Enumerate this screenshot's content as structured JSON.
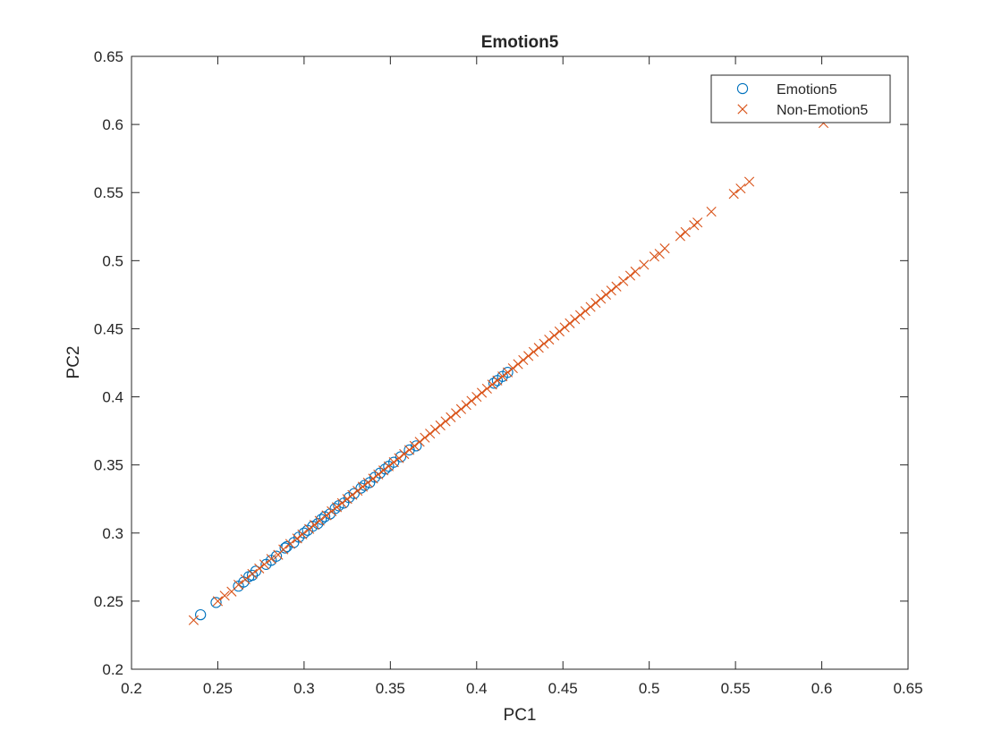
{
  "chart_data": {
    "type": "scatter",
    "title": "Emotion5",
    "xlabel": "PC1",
    "ylabel": "PC2",
    "xlim": [
      0.2,
      0.65
    ],
    "ylim": [
      0.2,
      0.65
    ],
    "xticks": [
      "0.2",
      "0.25",
      "0.3",
      "0.35",
      "0.4",
      "0.45",
      "0.5",
      "0.55",
      "0.6",
      "0.65"
    ],
    "yticks": [
      "0.2",
      "0.25",
      "0.3",
      "0.35",
      "0.4",
      "0.45",
      "0.5",
      "0.55",
      "0.6",
      "0.65"
    ],
    "grid": false,
    "legend_position": "top-right",
    "series": [
      {
        "name": "Emotion5",
        "marker": "circle",
        "color": "#0072BD",
        "points": [
          [
            0.24,
            0.24
          ],
          [
            0.249,
            0.249
          ],
          [
            0.262,
            0.261
          ],
          [
            0.265,
            0.264
          ],
          [
            0.268,
            0.268
          ],
          [
            0.27,
            0.269
          ],
          [
            0.272,
            0.272
          ],
          [
            0.278,
            0.277
          ],
          [
            0.281,
            0.28
          ],
          [
            0.284,
            0.283
          ],
          [
            0.289,
            0.289
          ],
          [
            0.29,
            0.29
          ],
          [
            0.294,
            0.293
          ],
          [
            0.297,
            0.297
          ],
          [
            0.3,
            0.3
          ],
          [
            0.302,
            0.302
          ],
          [
            0.305,
            0.305
          ],
          [
            0.308,
            0.307
          ],
          [
            0.31,
            0.31
          ],
          [
            0.312,
            0.312
          ],
          [
            0.315,
            0.314
          ],
          [
            0.318,
            0.318
          ],
          [
            0.32,
            0.32
          ],
          [
            0.323,
            0.322
          ],
          [
            0.326,
            0.326
          ],
          [
            0.329,
            0.329
          ],
          [
            0.333,
            0.333
          ],
          [
            0.335,
            0.335
          ],
          [
            0.338,
            0.337
          ],
          [
            0.341,
            0.341
          ],
          [
            0.344,
            0.344
          ],
          [
            0.347,
            0.347
          ],
          [
            0.349,
            0.349
          ],
          [
            0.352,
            0.352
          ],
          [
            0.356,
            0.356
          ],
          [
            0.361,
            0.361
          ],
          [
            0.365,
            0.364
          ],
          [
            0.41,
            0.41
          ],
          [
            0.412,
            0.412
          ],
          [
            0.415,
            0.415
          ],
          [
            0.418,
            0.418
          ]
        ]
      },
      {
        "name": "Non-Emotion5",
        "marker": "x",
        "color": "#D95319",
        "points": [
          [
            0.236,
            0.236
          ],
          [
            0.25,
            0.25
          ],
          [
            0.254,
            0.254
          ],
          [
            0.258,
            0.257
          ],
          [
            0.262,
            0.262
          ],
          [
            0.266,
            0.266
          ],
          [
            0.27,
            0.27
          ],
          [
            0.274,
            0.274
          ],
          [
            0.277,
            0.277
          ],
          [
            0.281,
            0.281
          ],
          [
            0.285,
            0.284
          ],
          [
            0.288,
            0.288
          ],
          [
            0.292,
            0.292
          ],
          [
            0.296,
            0.296
          ],
          [
            0.299,
            0.299
          ],
          [
            0.303,
            0.303
          ],
          [
            0.306,
            0.306
          ],
          [
            0.309,
            0.309
          ],
          [
            0.313,
            0.313
          ],
          [
            0.316,
            0.316
          ],
          [
            0.319,
            0.319
          ],
          [
            0.322,
            0.322
          ],
          [
            0.325,
            0.325
          ],
          [
            0.328,
            0.328
          ],
          [
            0.331,
            0.331
          ],
          [
            0.334,
            0.334
          ],
          [
            0.337,
            0.337
          ],
          [
            0.34,
            0.34
          ],
          [
            0.343,
            0.343
          ],
          [
            0.346,
            0.346
          ],
          [
            0.349,
            0.349
          ],
          [
            0.352,
            0.352
          ],
          [
            0.355,
            0.355
          ],
          [
            0.358,
            0.358
          ],
          [
            0.361,
            0.361
          ],
          [
            0.364,
            0.364
          ],
          [
            0.367,
            0.367
          ],
          [
            0.37,
            0.37
          ],
          [
            0.373,
            0.373
          ],
          [
            0.376,
            0.376
          ],
          [
            0.379,
            0.379
          ],
          [
            0.382,
            0.382
          ],
          [
            0.385,
            0.385
          ],
          [
            0.388,
            0.388
          ],
          [
            0.391,
            0.391
          ],
          [
            0.394,
            0.394
          ],
          [
            0.397,
            0.397
          ],
          [
            0.4,
            0.4
          ],
          [
            0.403,
            0.403
          ],
          [
            0.406,
            0.406
          ],
          [
            0.409,
            0.409
          ],
          [
            0.412,
            0.412
          ],
          [
            0.415,
            0.415
          ],
          [
            0.418,
            0.418
          ],
          [
            0.421,
            0.421
          ],
          [
            0.424,
            0.424
          ],
          [
            0.427,
            0.427
          ],
          [
            0.43,
            0.43
          ],
          [
            0.433,
            0.433
          ],
          [
            0.436,
            0.436
          ],
          [
            0.439,
            0.439
          ],
          [
            0.442,
            0.442
          ],
          [
            0.445,
            0.445
          ],
          [
            0.448,
            0.448
          ],
          [
            0.451,
            0.451
          ],
          [
            0.454,
            0.454
          ],
          [
            0.457,
            0.457
          ],
          [
            0.46,
            0.46
          ],
          [
            0.463,
            0.463
          ],
          [
            0.466,
            0.466
          ],
          [
            0.469,
            0.469
          ],
          [
            0.472,
            0.472
          ],
          [
            0.475,
            0.475
          ],
          [
            0.478,
            0.478
          ],
          [
            0.481,
            0.481
          ],
          [
            0.485,
            0.485
          ],
          [
            0.489,
            0.489
          ],
          [
            0.492,
            0.492
          ],
          [
            0.497,
            0.497
          ],
          [
            0.503,
            0.503
          ],
          [
            0.506,
            0.505
          ],
          [
            0.509,
            0.509
          ],
          [
            0.518,
            0.518
          ],
          [
            0.521,
            0.521
          ],
          [
            0.526,
            0.526
          ],
          [
            0.528,
            0.528
          ],
          [
            0.536,
            0.536
          ],
          [
            0.549,
            0.549
          ],
          [
            0.553,
            0.553
          ],
          [
            0.558,
            0.558
          ],
          [
            0.601,
            0.601
          ]
        ]
      }
    ]
  }
}
